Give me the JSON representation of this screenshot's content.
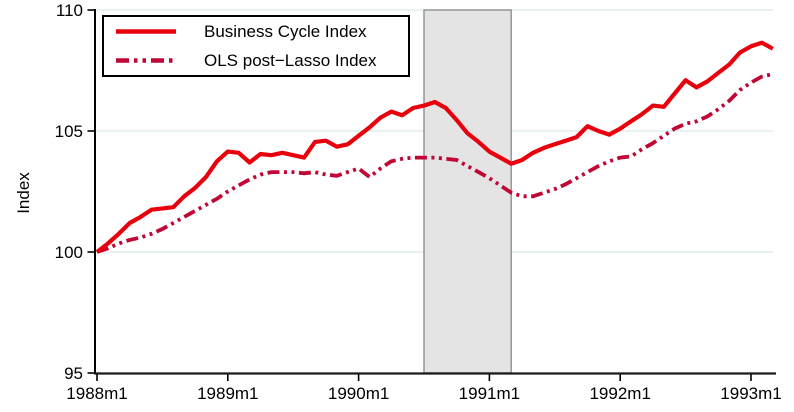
{
  "chart_data": {
    "type": "line",
    "frequency": "monthly",
    "x_start_label": "1988m1",
    "x_end_label": "1993m3",
    "xlabel": "",
    "ylabel": "Index",
    "ylim": [
      95,
      110
    ],
    "y_ticks": [
      95,
      100,
      105,
      110
    ],
    "x_ticks": [
      {
        "label": "1988m1",
        "month_index": 0
      },
      {
        "label": "1989m1",
        "month_index": 12
      },
      {
        "label": "1990m1",
        "month_index": 24
      },
      {
        "label": "1991m1",
        "month_index": 36
      },
      {
        "label": "1992m1",
        "month_index": 48
      },
      {
        "label": "1993m1",
        "month_index": 60
      }
    ],
    "grid": true,
    "gridline_color": "#e2edef",
    "legend_position": "top-left-inside",
    "recession_band": {
      "start_label": "1990m7",
      "end_label": "1991m3",
      "start_month_index": 30,
      "end_month_index": 38,
      "fill": "#e4e4e4",
      "border": "#8f8f8f"
    },
    "series": [
      {
        "name": "Business Cycle Index",
        "color": "#e8000d",
        "line_style": "solid",
        "values": [
          100.0,
          100.35,
          100.75,
          101.2,
          101.45,
          101.75,
          101.8,
          101.85,
          102.3,
          102.65,
          103.1,
          103.75,
          104.15,
          104.1,
          103.7,
          104.05,
          104.0,
          104.1,
          104.0,
          103.9,
          104.55,
          104.6,
          104.35,
          104.45,
          104.8,
          105.15,
          105.55,
          105.8,
          105.65,
          105.95,
          106.05,
          106.2,
          105.95,
          105.45,
          104.9,
          104.55,
          104.15,
          103.9,
          103.65,
          103.8,
          104.1,
          104.3,
          104.45,
          104.6,
          104.75,
          105.2,
          105.0,
          104.85,
          105.1,
          105.4,
          105.7,
          106.05,
          106.0,
          106.55,
          107.1,
          106.8,
          107.05,
          107.4,
          107.75,
          108.25,
          108.5,
          108.65,
          108.4
        ]
      },
      {
        "name": "OLS post−Lasso Index",
        "color": "#c10534",
        "line_style": "dash-dot-dot",
        "values": [
          100.0,
          100.15,
          100.35,
          100.5,
          100.6,
          100.75,
          100.95,
          101.2,
          101.45,
          101.7,
          101.95,
          102.2,
          102.5,
          102.75,
          103.0,
          103.2,
          103.3,
          103.3,
          103.3,
          103.25,
          103.3,
          103.2,
          103.15,
          103.3,
          103.45,
          103.1,
          103.45,
          103.75,
          103.85,
          103.9,
          103.9,
          103.9,
          103.85,
          103.8,
          103.55,
          103.3,
          103.05,
          102.75,
          102.45,
          102.3,
          102.3,
          102.45,
          102.6,
          102.8,
          103.05,
          103.3,
          103.55,
          103.75,
          103.9,
          103.95,
          104.25,
          104.5,
          104.8,
          105.1,
          105.3,
          105.4,
          105.6,
          105.9,
          106.25,
          106.7,
          107.0,
          107.25,
          107.35
        ]
      }
    ]
  }
}
